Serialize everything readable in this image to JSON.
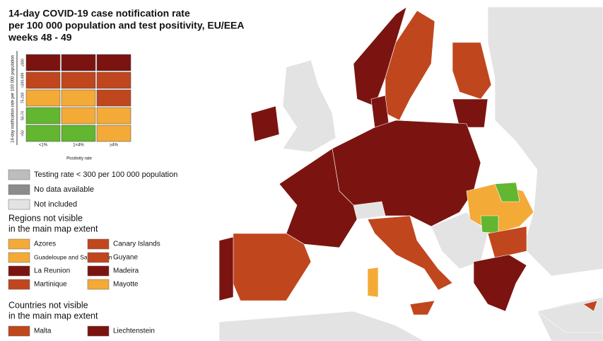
{
  "title": [
    "14-day COVID-19 case notification rate",
    "per 100 000 population and test positivity, EU/EEA",
    "weeks 48 - 49"
  ],
  "matrix": {
    "y_axis_label": "14-day notification rate per 100 000 population",
    "y_labels": [
      "≥500",
      ">200-499",
      "75-200",
      "50-74",
      "<50"
    ],
    "x_labels": [
      "<1%",
      "1<4%",
      "≥4%"
    ],
    "x_axis_label": "Positivity rate",
    "cells": [
      [
        "#7b1410",
        "#7b1410",
        "#7b1410"
      ],
      [
        "#c0461e",
        "#c0461e",
        "#c0461e"
      ],
      [
        "#f4aa36",
        "#f4aa36",
        "#c0461e"
      ],
      [
        "#62b630",
        "#f4aa36",
        "#f4aa36"
      ],
      [
        "#62b630",
        "#62b630",
        "#f4aa36"
      ]
    ]
  },
  "status_legend": [
    {
      "label": "Testing rate < 300 per 100 000 population",
      "color": "#bdbdbd"
    },
    {
      "label": "No data available",
      "color": "#8c8c8c"
    },
    {
      "label": "Not included",
      "color": "#e3e3e3"
    }
  ],
  "regions": {
    "title": [
      "Regions not visible",
      "in the main map extent"
    ],
    "items": [
      {
        "label": "Azores",
        "color": "#f4aa36"
      },
      {
        "label": "Canary Islands",
        "color": "#c0461e"
      },
      {
        "label": "Guadeloupe and Saint Martin",
        "color": "#f4aa36"
      },
      {
        "label": "Guyane",
        "color": "#c0461e"
      },
      {
        "label": "La Reunion",
        "color": "#7b1410"
      },
      {
        "label": "Madeira",
        "color": "#7b1410"
      },
      {
        "label": "Martinique",
        "color": "#c0461e"
      },
      {
        "label": "Mayotte",
        "color": "#f4aa36"
      }
    ]
  },
  "countries": {
    "title": [
      "Countries not visible",
      "in the main map extent"
    ],
    "items": [
      {
        "label": "Malta",
        "color": "#c0461e"
      },
      {
        "label": "Liechtenstein",
        "color": "#7b1410"
      }
    ]
  }
}
